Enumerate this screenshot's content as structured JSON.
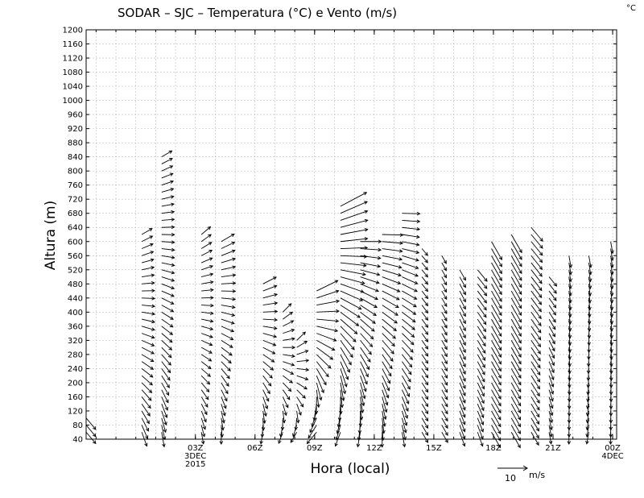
{
  "chart_data": {
    "type": "wind-barb profile (time-height)",
    "title": "SODAR – SJC – Temperatura (°C) e Vento (m/s)",
    "unit_label": "°C",
    "ylabel": "Altura (m)",
    "xlabel": "Hora (local)",
    "ylim": [
      40,
      1200
    ],
    "y_ticks": [
      40,
      80,
      120,
      160,
      200,
      240,
      280,
      320,
      360,
      400,
      440,
      480,
      520,
      560,
      600,
      640,
      680,
      720,
      760,
      800,
      840,
      880,
      920,
      960,
      1000,
      1040,
      1080,
      1120,
      1160,
      1200
    ],
    "xlim_hours": [
      -2.5,
      24.2
    ],
    "x_ticks": [
      {
        "hour": 3,
        "lines": [
          "03Z",
          "3DEC",
          "2015"
        ]
      },
      {
        "hour": 6,
        "lines": [
          "06Z"
        ]
      },
      {
        "hour": 9,
        "lines": [
          "09Z"
        ]
      },
      {
        "hour": 12,
        "lines": [
          "12Z"
        ]
      },
      {
        "hour": 15,
        "lines": [
          "15Z"
        ]
      },
      {
        "hour": 18,
        "lines": [
          "18Z"
        ]
      },
      {
        "hour": 21,
        "lines": [
          "21Z"
        ]
      },
      {
        "hour": 24,
        "lines": [
          "00Z",
          "4DEC"
        ]
      }
    ],
    "grid": true,
    "reference_vector": {
      "label": "10",
      "unit": "m/s",
      "speed": 10
    },
    "profiles": [
      {
        "hour": -2.5,
        "top": 100,
        "dir": 140,
        "spd": 5,
        "dir_top": 140,
        "spd_top": 5
      },
      {
        "hour": 0.3,
        "top": 620,
        "dir": 160,
        "spd": 5,
        "dir_top": 60,
        "spd_top": 4
      },
      {
        "hour": 1.3,
        "top": 840,
        "dir": 170,
        "spd": 5,
        "dir_top": 60,
        "spd_top": 4
      },
      {
        "hour": 3.3,
        "top": 620,
        "dir": 170,
        "spd": 4,
        "dir_top": 50,
        "spd_top": 4
      },
      {
        "hour": 4.3,
        "top": 600,
        "dir": 180,
        "spd": 4,
        "dir_top": 60,
        "spd_top": 5
      },
      {
        "hour": 6.4,
        "top": 490,
        "dir": 190,
        "spd": 4,
        "dir_top": 60,
        "spd_top": 5
      },
      {
        "hour": 7.4,
        "top": 410,
        "dir": 200,
        "spd": 4,
        "dir_top": 40,
        "spd_top": 4
      },
      {
        "hour": 8.1,
        "top": 330,
        "dir": 210,
        "spd": 4,
        "dir_top": 40,
        "spd_top": 4
      },
      {
        "hour": 9.1,
        "top": 470,
        "dir": 220,
        "spd": 5,
        "dir_top": 60,
        "spd_top": 8
      },
      {
        "hour": 10.3,
        "top": 710,
        "dir": 200,
        "spd": 5,
        "dir_top": 60,
        "spd_top": 10
      },
      {
        "hour": 11.3,
        "top": 600,
        "dir": 190,
        "spd": 5,
        "dir_top": 90,
        "spd_top": 7
      },
      {
        "hour": 12.4,
        "top": 630,
        "dir": 180,
        "spd": 5,
        "dir_top": 90,
        "spd_top": 7
      },
      {
        "hour": 13.4,
        "top": 690,
        "dir": 170,
        "spd": 5,
        "dir_top": 90,
        "spd_top": 6
      },
      {
        "hour": 14.4,
        "top": 580,
        "dir": 150,
        "spd": 4,
        "dir_top": 140,
        "spd_top": 3
      },
      {
        "hour": 15.4,
        "top": 560,
        "dir": 150,
        "spd": 4,
        "dir_top": 150,
        "spd_top": 3
      },
      {
        "hour": 16.3,
        "top": 530,
        "dir": 160,
        "spd": 5,
        "dir_top": 150,
        "spd_top": 4
      },
      {
        "hour": 17.2,
        "top": 530,
        "dir": 160,
        "spd": 5,
        "dir_top": 140,
        "spd_top": 5
      },
      {
        "hour": 17.9,
        "top": 600,
        "dir": 150,
        "spd": 6,
        "dir_top": 150,
        "spd_top": 7
      },
      {
        "hour": 18.9,
        "top": 630,
        "dir": 150,
        "spd": 6,
        "dir_top": 150,
        "spd_top": 7
      },
      {
        "hour": 19.9,
        "top": 640,
        "dir": 150,
        "spd": 5,
        "dir_top": 140,
        "spd_top": 6
      },
      {
        "hour": 20.8,
        "top": 510,
        "dir": 170,
        "spd": 4,
        "dir_top": 140,
        "spd_top": 4
      },
      {
        "hour": 21.8,
        "top": 560,
        "dir": 180,
        "spd": 4,
        "dir_top": 170,
        "spd_top": 4
      },
      {
        "hour": 22.8,
        "top": 560,
        "dir": 190,
        "spd": 4,
        "dir_top": 170,
        "spd_top": 4
      },
      {
        "hour": 23.9,
        "top": 610,
        "dir": 180,
        "spd": 4,
        "dir_top": 170,
        "spd_top": 4
      }
    ]
  }
}
